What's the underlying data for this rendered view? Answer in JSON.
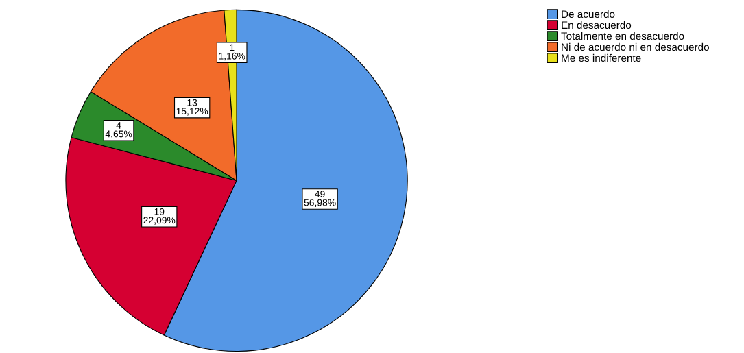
{
  "chart_data": {
    "type": "pie",
    "categories": [
      "De acuerdo",
      "En desacuerdo",
      "Totalmente en desacuerdo",
      "Ni de acuerdo ni en desacuerdo",
      "Me es indiferente"
    ],
    "values": [
      49,
      19,
      4,
      13,
      1
    ],
    "colors": [
      "#5597e6",
      "#d50032",
      "#2b8a2b",
      "#f26b2a",
      "#e8e01b"
    ],
    "value_labels": [
      "49\n56,98%",
      "19\n22,09%",
      "4\n4,65%",
      "13\n15,12%",
      "1\n1,16%"
    ],
    "legend": "top right"
  }
}
